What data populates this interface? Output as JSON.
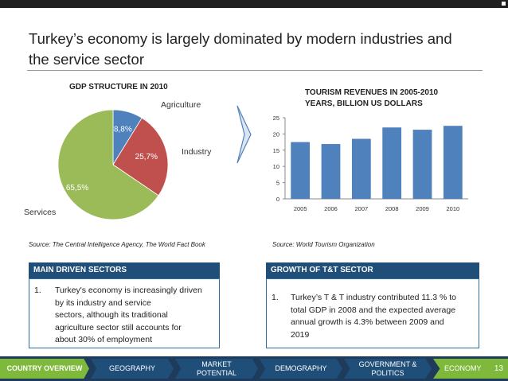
{
  "title": "Turkey’s economy is largely dominated by modern industries and the service sector",
  "left_chart_title": "GDP STRUCTURE IN 2010",
  "right_chart_title": "TOURISM REVENUES IN 2005-2010 YEARS, BILLION US DOLLARS",
  "source_left": "Source: The  Central Intelligence Agency, The World Fact Book",
  "source_right": "Source: World Tourism Organization",
  "chart_data": [
    {
      "type": "pie",
      "title": "GDP STRUCTURE IN 2010",
      "labels": [
        "Agriculture",
        "Industry",
        "Services"
      ],
      "values": [
        8.8,
        25.7,
        65.5
      ],
      "value_labels": [
        "8,8%",
        "25,7%",
        "65,5%"
      ],
      "colors": [
        "#4f81bd",
        "#c0504d",
        "#9bbb59"
      ]
    },
    {
      "type": "bar",
      "title": "TOURISM REVENUES IN 2005-2010 YEARS, BILLION US DOLLARS",
      "categories": [
        "2005",
        "2006",
        "2007",
        "2008",
        "2009",
        "2010"
      ],
      "values": [
        17.5,
        16.9,
        18.5,
        22.0,
        21.3,
        22.5
      ],
      "ylim": [
        0,
        25
      ],
      "yticks": [
        "0",
        "5",
        "10",
        "15",
        "20",
        "25"
      ],
      "color": "#4f81bd",
      "grid": false
    }
  ],
  "box_left": {
    "header": "MAIN DRIVEN SECTORS",
    "number": "1.",
    "lines": [
      "Turkey's economy is increasingly driven",
      "by its industry and service",
      "sectors, although its traditional",
      "agriculture sector still accounts for",
      "about 30% of employment"
    ]
  },
  "box_right": {
    "header": "GROWTH OF T&T SECTOR",
    "number": "1.",
    "lines": [
      "Turkey’s T & T industry contributed 11.3 % to",
      "total GDP in 2008 and the expected average",
      "annual growth is 4.3% between 2009 and",
      "2019"
    ]
  },
  "nav": {
    "items": [
      {
        "line1": "COUNTRY OVERVIEW",
        "line2": ""
      },
      {
        "line1": "GEOGRAPHY",
        "line2": ""
      },
      {
        "line1": "MARKET",
        "line2": "POTENTIAL"
      },
      {
        "line1": "DEMOGRAPHY",
        "line2": ""
      },
      {
        "line1": "GOVERNMENT &",
        "line2": "POLITICS"
      },
      {
        "line1": "ECONOMY",
        "line2": ""
      }
    ],
    "page": "13"
  }
}
